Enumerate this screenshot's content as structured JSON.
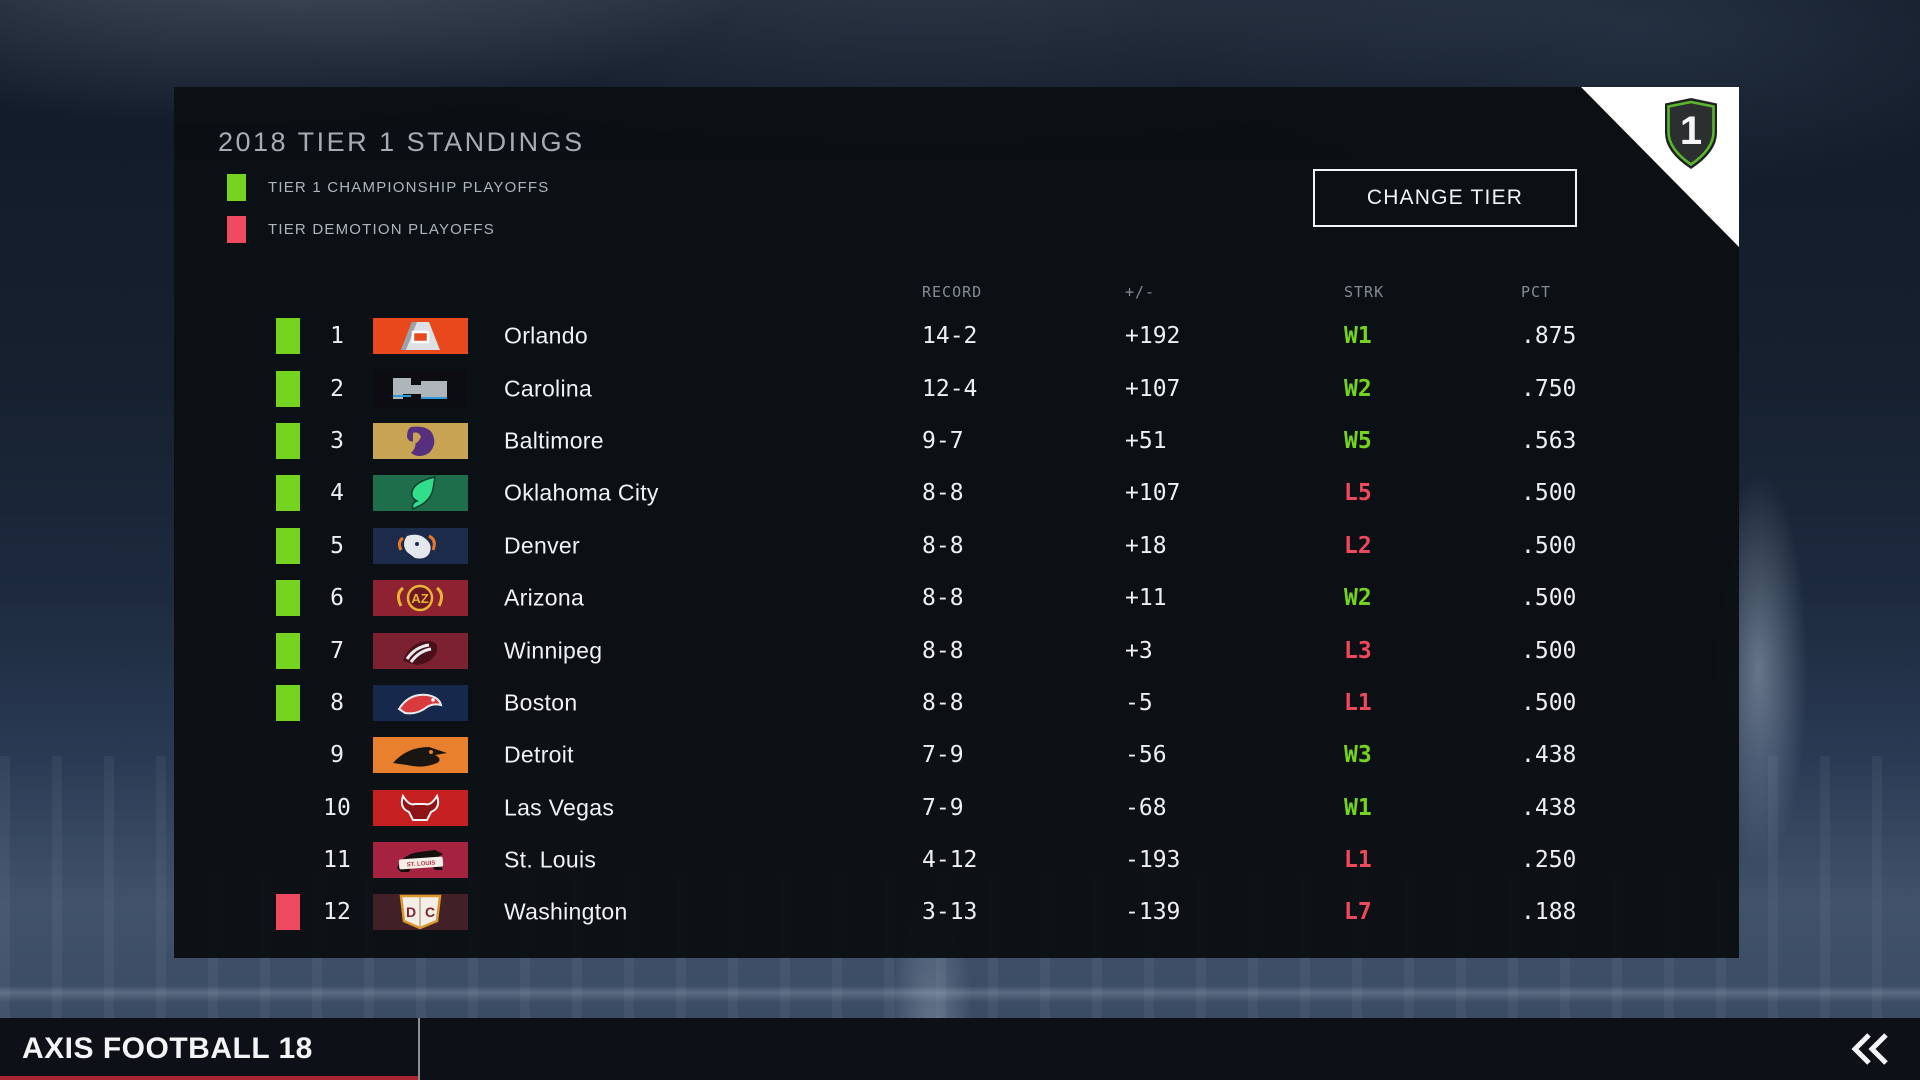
{
  "page": {
    "game_title": "AXIS FOOTBALL 18",
    "icons": {
      "collapse": "double-left-chevron",
      "tier_badge": "shield-icon"
    }
  },
  "colors": {
    "championship_green": "#74D41F",
    "demotion_pink": "#F04A5E",
    "win": "#74D41F",
    "loss": "#F0485C",
    "footer_accent_red": "#A82433"
  },
  "standings": {
    "title": "2018 TIER 1 STANDINGS",
    "tier_badge": "1",
    "change_tier_button": "CHANGE TIER",
    "legend": [
      {
        "key": "championship",
        "label": "TIER 1 CHAMPIONSHIP PLAYOFFS",
        "color": "#74D41F"
      },
      {
        "key": "demotion",
        "label": "TIER DEMOTION PLAYOFFS",
        "color": "#F04A5E"
      }
    ],
    "columns": {
      "record": "RECORD",
      "diff": "+/-",
      "streak": "STRK",
      "pct": "PCT"
    },
    "teams": [
      {
        "rank": "1",
        "name": "Orlando",
        "record": "14-2",
        "diff": "+192",
        "streak": "W1",
        "pct": ".875",
        "indicator": "championship",
        "logo": "orlando"
      },
      {
        "rank": "2",
        "name": "Carolina",
        "record": "12-4",
        "diff": "+107",
        "streak": "W2",
        "pct": ".750",
        "indicator": "championship",
        "logo": "carolina"
      },
      {
        "rank": "3",
        "name": "Baltimore",
        "record": "9-7",
        "diff": "+51",
        "streak": "W5",
        "pct": ".563",
        "indicator": "championship",
        "logo": "baltimore"
      },
      {
        "rank": "4",
        "name": "Oklahoma City",
        "record": "8-8",
        "diff": "+107",
        "streak": "L5",
        "pct": ".500",
        "indicator": "championship",
        "logo": "okc"
      },
      {
        "rank": "5",
        "name": "Denver",
        "record": "8-8",
        "diff": "+18",
        "streak": "L2",
        "pct": ".500",
        "indicator": "championship",
        "logo": "denver"
      },
      {
        "rank": "6",
        "name": "Arizona",
        "record": "8-8",
        "diff": "+11",
        "streak": "W2",
        "pct": ".500",
        "indicator": "championship",
        "logo": "arizona",
        "logo_text": "AZ"
      },
      {
        "rank": "7",
        "name": "Winnipeg",
        "record": "8-8",
        "diff": "+3",
        "streak": "L3",
        "pct": ".500",
        "indicator": "championship",
        "logo": "winnipeg"
      },
      {
        "rank": "8",
        "name": "Boston",
        "record": "8-8",
        "diff": "-5",
        "streak": "L1",
        "pct": ".500",
        "indicator": "championship",
        "logo": "boston"
      },
      {
        "rank": "9",
        "name": "Detroit",
        "record": "7-9",
        "diff": "-56",
        "streak": "W3",
        "pct": ".438",
        "indicator": "none",
        "logo": "detroit"
      },
      {
        "rank": "10",
        "name": "Las Vegas",
        "record": "7-9",
        "diff": "-68",
        "streak": "W1",
        "pct": ".438",
        "indicator": "none",
        "logo": "lasvegas"
      },
      {
        "rank": "11",
        "name": "St. Louis",
        "record": "4-12",
        "diff": "-193",
        "streak": "L1",
        "pct": ".250",
        "indicator": "none",
        "logo": "stlouis",
        "logo_text": "ST. LOUIS"
      },
      {
        "rank": "12",
        "name": "Washington",
        "record": "3-13",
        "diff": "-139",
        "streak": "L7",
        "pct": ".188",
        "indicator": "demotion",
        "logo": "washington",
        "logo_text": "D C"
      }
    ]
  }
}
